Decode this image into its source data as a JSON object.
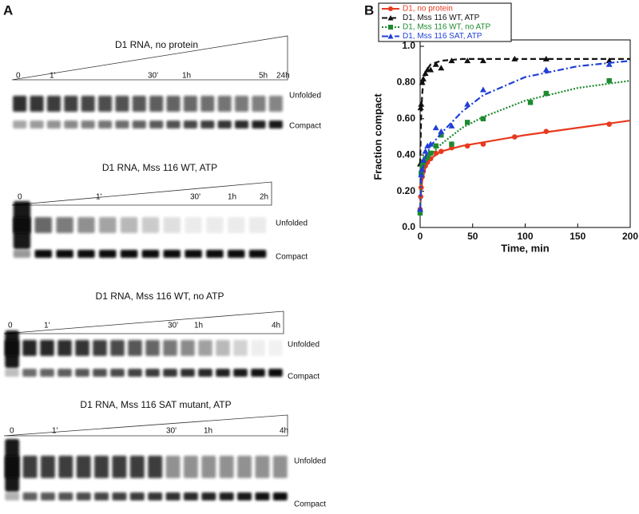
{
  "panel_a": {
    "label": "A",
    "gels": [
      {
        "title": "D1 RNA, no protein",
        "times": [
          "0",
          "1'",
          "30'",
          "1h",
          "5h",
          "24h"
        ],
        "unfolded": "Unfolded",
        "compact": "Compact"
      },
      {
        "title": "D1 RNA, Mss 116 WT, ATP",
        "times": [
          "0",
          "1'",
          "30'",
          "1h",
          "2h"
        ],
        "unfolded": "Unfolded",
        "compact": "Compact"
      },
      {
        "title": "D1 RNA, Mss 116 WT, no ATP",
        "times": [
          "0",
          "1'",
          "30'",
          "1h",
          "4h"
        ],
        "unfolded": "Unfolded",
        "compact": "Compact"
      },
      {
        "title": "D1 RNA, Mss 116 SAT mutant, ATP",
        "times": [
          "0",
          "1'",
          "30'",
          "1h",
          "4h"
        ],
        "unfolded": "Unfolded",
        "compact": "Compact"
      }
    ]
  },
  "chart_data": {
    "type": "scatter",
    "panel_label": "B",
    "x_label": "Time, min",
    "y_label": "Fraction compact",
    "xlim": [
      0,
      200
    ],
    "xticks": [
      0,
      50,
      100,
      150,
      200
    ],
    "ylim": [
      0,
      1.0
    ],
    "yticks": [
      {
        "value": 0,
        "label": "0.0"
      },
      {
        "value": 0.2,
        "label": "0.20"
      },
      {
        "value": 0.4,
        "label": "0.40"
      },
      {
        "value": 0.6,
        "label": "0.60"
      },
      {
        "value": 0.8,
        "label": "0.80"
      },
      {
        "value": 1.0,
        "label": "1.0"
      }
    ],
    "legend": "top-left",
    "series": [
      {
        "name": "D1, no protein",
        "color": "#e8391e",
        "marker": "circle",
        "dash": "solid",
        "x": [
          0,
          0.5,
          1,
          2,
          3,
          5,
          7,
          10,
          15,
          20,
          30,
          45,
          60,
          90,
          120,
          180
        ],
        "values": [
          0.1,
          0.17,
          0.22,
          0.28,
          0.31,
          0.34,
          0.36,
          0.38,
          0.41,
          0.42,
          0.44,
          0.45,
          0.46,
          0.5,
          0.53,
          0.57
        ],
        "fit_x": [
          0,
          1,
          2,
          5,
          10,
          20,
          40,
          60,
          100,
          150,
          200
        ],
        "fit_y": [
          0.1,
          0.2,
          0.26,
          0.33,
          0.38,
          0.42,
          0.45,
          0.47,
          0.51,
          0.55,
          0.59
        ]
      },
      {
        "name": "D1, Mss 116 WT, ATP",
        "color": "#111111",
        "marker": "triangle",
        "dash": "dashed",
        "x": [
          0,
          0.5,
          1,
          2,
          3,
          5,
          7,
          10,
          15,
          20,
          30,
          45,
          60,
          90,
          120,
          180
        ],
        "values": [
          0.35,
          0.66,
          0.68,
          0.8,
          0.82,
          0.85,
          0.87,
          0.87,
          0.9,
          0.88,
          0.92,
          0.92,
          0.92,
          0.93,
          0.93,
          0.92
        ],
        "fit_x": [
          0,
          1,
          2,
          3,
          5,
          10,
          20,
          40,
          100,
          200
        ],
        "fit_y": [
          0.35,
          0.62,
          0.74,
          0.8,
          0.86,
          0.9,
          0.92,
          0.93,
          0.93,
          0.93
        ]
      },
      {
        "name": "D1, Mss 116 WT, no ATP",
        "color": "#1d8a2e",
        "marker": "square",
        "dash": "dotted",
        "x": [
          0,
          1,
          2,
          3,
          5,
          7,
          10,
          15,
          20,
          30,
          45,
          60,
          105,
          120,
          180
        ],
        "values": [
          0.08,
          0.3,
          0.34,
          0.36,
          0.38,
          0.39,
          0.41,
          0.45,
          0.51,
          0.46,
          0.58,
          0.6,
          0.69,
          0.74,
          0.81
        ],
        "fit_x": [
          0,
          1,
          3,
          5,
          10,
          20,
          40,
          60,
          100,
          150,
          200
        ],
        "fit_y": [
          0.08,
          0.27,
          0.33,
          0.36,
          0.4,
          0.46,
          0.55,
          0.61,
          0.7,
          0.77,
          0.81
        ]
      },
      {
        "name": "D1, Mss 116 SAT, ATP",
        "color": "#1f3fd6",
        "marker": "triangle",
        "dash": "dashdot",
        "x": [
          0,
          1,
          2,
          3,
          5,
          7,
          10,
          15,
          20,
          30,
          45,
          60,
          120,
          180
        ],
        "values": [
          0.1,
          0.29,
          0.32,
          0.37,
          0.42,
          0.45,
          0.46,
          0.55,
          0.53,
          0.56,
          0.68,
          0.76,
          0.87,
          0.9
        ],
        "fit_x": [
          0,
          1,
          3,
          5,
          10,
          20,
          40,
          60,
          100,
          150,
          200
        ],
        "fit_y": [
          0.1,
          0.27,
          0.34,
          0.39,
          0.45,
          0.52,
          0.64,
          0.73,
          0.83,
          0.89,
          0.92
        ]
      }
    ]
  }
}
